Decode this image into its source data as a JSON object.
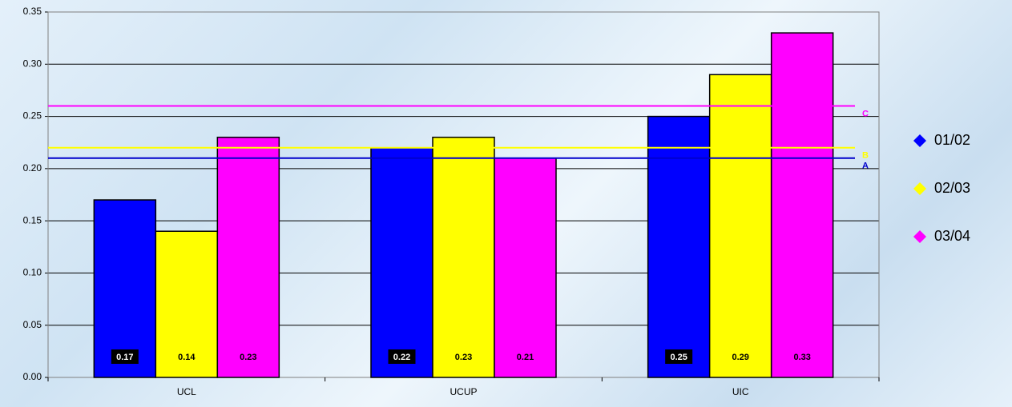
{
  "chart_data": {
    "type": "bar",
    "categories": [
      "UCL",
      "UCUP",
      "UIC"
    ],
    "series": [
      {
        "name": "01/02",
        "color": "#0000ff",
        "values": [
          0.17,
          0.22,
          0.25
        ]
      },
      {
        "name": "02/03",
        "color": "#ffff00",
        "values": [
          0.14,
          0.23,
          0.29
        ]
      },
      {
        "name": "03/04",
        "color": "#ff00ff",
        "values": [
          0.23,
          0.21,
          0.33
        ]
      }
    ],
    "reference_lines": [
      {
        "name": "A",
        "value": 0.21,
        "color": "#0000cc"
      },
      {
        "name": "B",
        "value": 0.22,
        "color": "#ffff00"
      },
      {
        "name": "C",
        "value": 0.26,
        "color": "#ff00ff"
      }
    ],
    "ylim": [
      0,
      0.35
    ],
    "yticks": [
      {
        "value": 0,
        "label": "0.00"
      },
      {
        "value": 0.05,
        "label": "0.05"
      },
      {
        "value": 0.1,
        "label": "0.10"
      },
      {
        "value": 0.15,
        "label": "0.15"
      },
      {
        "value": 0.2,
        "label": "0.20"
      },
      {
        "value": 0.25,
        "label": "0.25"
      },
      {
        "value": 0.3,
        "label": "0.30"
      },
      {
        "value": 0.35,
        "label": "0.35"
      }
    ],
    "grid": true,
    "legend": "right"
  }
}
